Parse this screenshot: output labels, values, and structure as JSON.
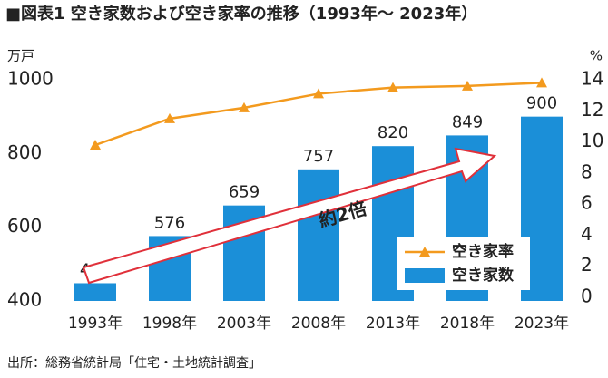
{
  "chart_data": {
    "type": "bar",
    "title": "■図表1 空き家数および空き家率の推移（1993年〜 2023年）",
    "y_label": "万戸",
    "y2_label": "%",
    "categories": [
      "1993年",
      "1998年",
      "2003年",
      "2008年",
      "2013年",
      "2018年",
      "2023年"
    ],
    "series": [
      {
        "name": "空き家数",
        "type": "bar",
        "color": "#1b8fd8",
        "values": [
          448,
          576,
          659,
          757,
          820,
          849,
          900
        ]
      },
      {
        "name": "空き家率",
        "type": "line",
        "axis": "y2",
        "color": "#f39a1e",
        "values": [
          9.8,
          11.5,
          12.2,
          13.1,
          13.5,
          13.6,
          13.8
        ]
      }
    ],
    "ylim": [
      400,
      1000
    ],
    "yticks": [
      400,
      600,
      800,
      1000
    ],
    "y2lim": [
      0,
      14
    ],
    "y2ticks": [
      0,
      2,
      4,
      6,
      8,
      10,
      12,
      14
    ],
    "annotation": "約2倍",
    "source": "出所：総務省統計局「住宅・土地統計調査」"
  }
}
